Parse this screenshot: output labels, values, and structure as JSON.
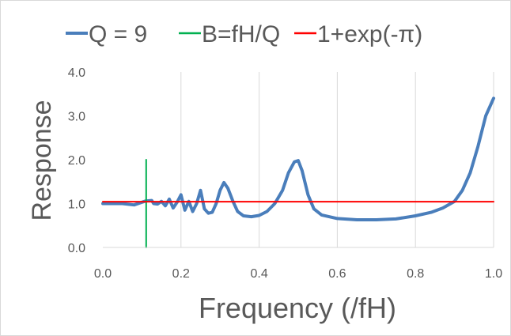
{
  "chart_data": {
    "type": "line",
    "xlabel": "Frequency (/fH)",
    "ylabel": "Response",
    "xlim": [
      0,
      1
    ],
    "ylim": [
      0,
      4
    ],
    "x_ticks": [
      "0.0",
      "0.2",
      "0.4",
      "0.6",
      "0.8",
      "1.0"
    ],
    "y_ticks": [
      "0.0",
      "1.0",
      "2.0",
      "3.0",
      "4.0"
    ],
    "grid": "vertical",
    "legend_position": "top",
    "series": [
      {
        "name": "Q = 9",
        "color": "#4a7ebb",
        "x": [
          0.0,
          0.02,
          0.05,
          0.08,
          0.1,
          0.11,
          0.125,
          0.13,
          0.14,
          0.15,
          0.16,
          0.17,
          0.18,
          0.19,
          0.2,
          0.21,
          0.22,
          0.23,
          0.24,
          0.25,
          0.26,
          0.27,
          0.28,
          0.29,
          0.3,
          0.31,
          0.32,
          0.333,
          0.345,
          0.36,
          0.38,
          0.4,
          0.42,
          0.44,
          0.46,
          0.475,
          0.49,
          0.5,
          0.51,
          0.525,
          0.54,
          0.56,
          0.6,
          0.65,
          0.7,
          0.75,
          0.8,
          0.84,
          0.87,
          0.9,
          0.92,
          0.94,
          0.96,
          0.98,
          1.0
        ],
        "y": [
          1.0,
          1.0,
          1.0,
          0.97,
          1.03,
          1.06,
          1.07,
          1.0,
          0.99,
          1.05,
          0.95,
          1.1,
          0.9,
          1.03,
          1.2,
          0.85,
          1.05,
          0.82,
          1.0,
          1.3,
          0.88,
          0.78,
          0.8,
          1.0,
          1.3,
          1.48,
          1.35,
          1.05,
          0.82,
          0.72,
          0.7,
          0.73,
          0.82,
          1.0,
          1.3,
          1.7,
          1.95,
          1.98,
          1.75,
          1.2,
          0.88,
          0.74,
          0.66,
          0.63,
          0.63,
          0.65,
          0.72,
          0.8,
          0.9,
          1.05,
          1.3,
          1.7,
          2.3,
          3.0,
          3.4
        ]
      },
      {
        "name": "B=fH/Q",
        "color": "#00b050",
        "x": [
          0.111,
          0.111
        ],
        "y": [
          0.0,
          2.0
        ]
      },
      {
        "name": "1+exp(-π)",
        "color": "#ff0000",
        "x": [
          0.0,
          1.0
        ],
        "y": [
          1.0432,
          1.0432
        ]
      }
    ]
  }
}
